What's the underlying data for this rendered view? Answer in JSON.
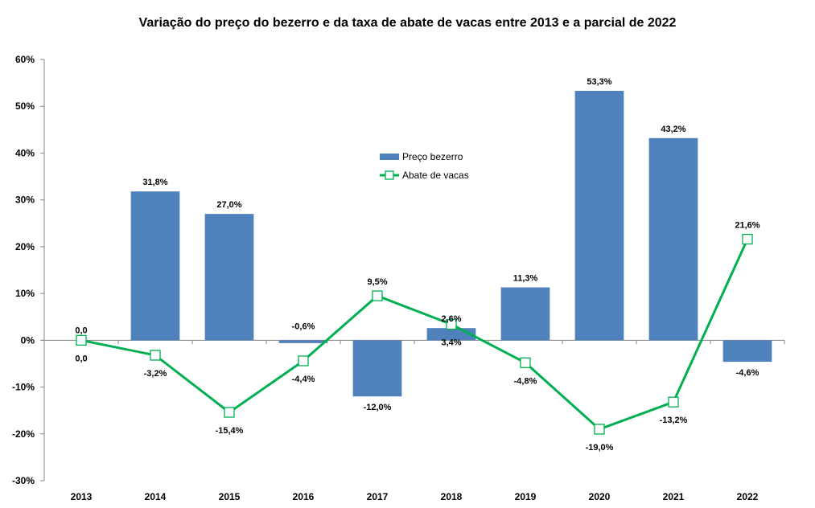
{
  "chart_data": {
    "type": "bar",
    "title": "Variação do preço do bezerro e da taxa de abate de vacas entre 2013 e a parcial de 2022",
    "categories": [
      "2013",
      "2014",
      "2015",
      "2016",
      "2017",
      "2018",
      "2019",
      "2020",
      "2021",
      "2022"
    ],
    "series": [
      {
        "name": "Preço bezerro",
        "type": "bar",
        "color": "#4F81BD",
        "values": [
          0.0,
          31.8,
          27.0,
          -0.6,
          -12.0,
          2.6,
          11.3,
          53.3,
          43.2,
          -4.6
        ],
        "labels": [
          "0,0",
          "31,8%",
          "27,0%",
          "-0,6%",
          "-12,0%",
          "2,6%",
          "11,3%",
          "53,3%",
          "43,2%",
          "-4,6%"
        ]
      },
      {
        "name": "Abate de vacas",
        "type": "line",
        "color": "#00B050",
        "values": [
          0.0,
          -3.2,
          -15.4,
          -4.4,
          9.5,
          3.4,
          -4.8,
          -19.0,
          -13.2,
          21.6
        ],
        "labels": [
          "0,0",
          "-3,2%",
          "-15,4%",
          "-4,4%",
          "9,5%",
          "3,4%",
          "-4,8%",
          "-19,0%",
          "-13,2%",
          "21,6%"
        ]
      }
    ],
    "ylim": [
      -30,
      60
    ],
    "yticks": [
      -30,
      -20,
      -10,
      0,
      10,
      20,
      30,
      40,
      50,
      60
    ],
    "ytick_labels": [
      "-30%",
      "-20%",
      "-10%",
      "0%",
      "10%",
      "20%",
      "30%",
      "40%",
      "50%",
      "60%"
    ],
    "grid": false,
    "legend_position": "top-center"
  }
}
